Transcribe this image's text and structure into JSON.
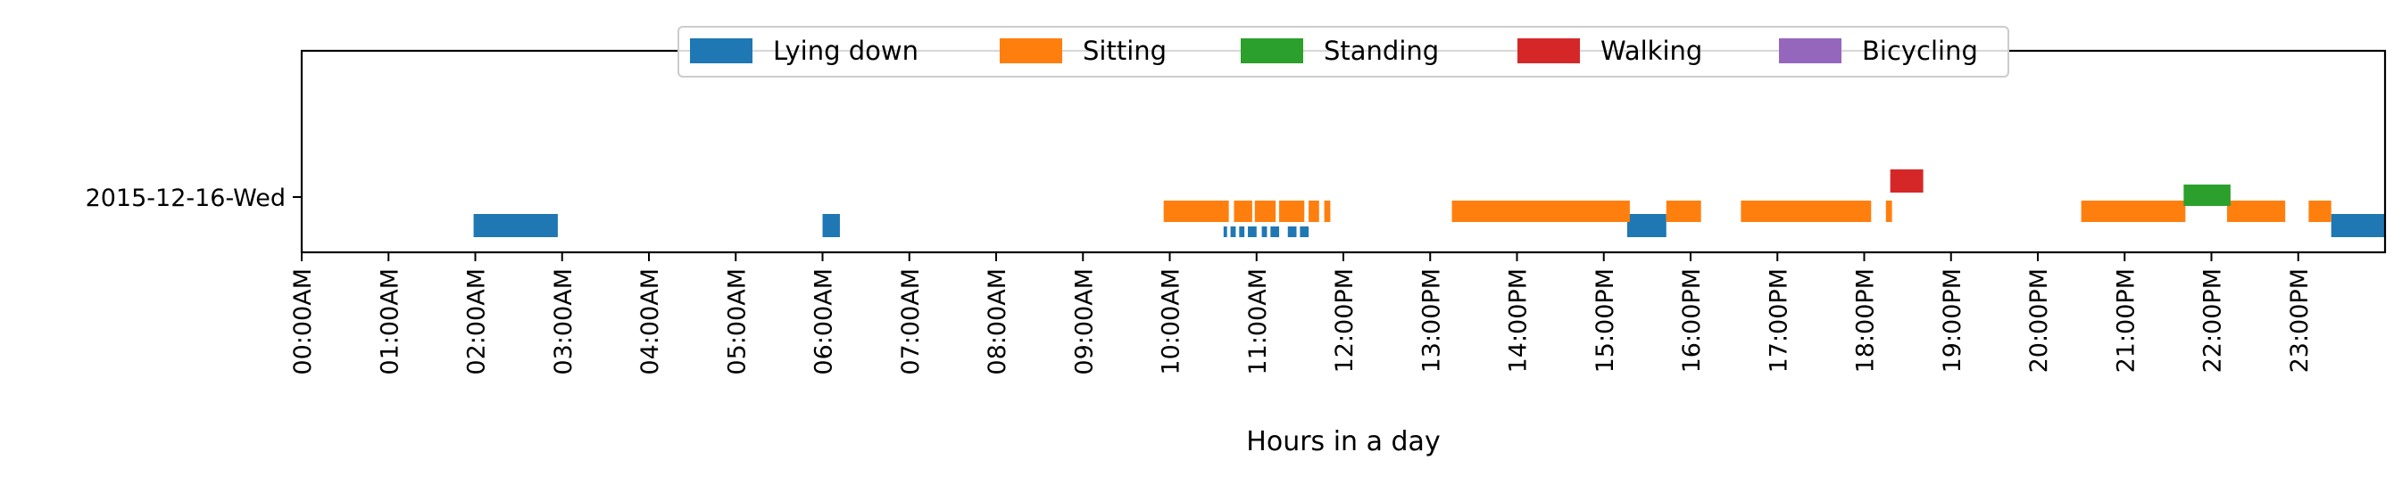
{
  "chart_data": {
    "type": "timeline",
    "xlabel": "Hours in a day",
    "ylabel": "",
    "y_categories": [
      "2015-12-16-Wed"
    ],
    "xlim": [
      0,
      24
    ],
    "x_ticks": [
      {
        "value": 0,
        "label": "00:00AM"
      },
      {
        "value": 1,
        "label": "01:00AM"
      },
      {
        "value": 2,
        "label": "02:00AM"
      },
      {
        "value": 3,
        "label": "03:00AM"
      },
      {
        "value": 4,
        "label": "04:00AM"
      },
      {
        "value": 5,
        "label": "05:00AM"
      },
      {
        "value": 6,
        "label": "06:00AM"
      },
      {
        "value": 7,
        "label": "07:00AM"
      },
      {
        "value": 8,
        "label": "08:00AM"
      },
      {
        "value": 9,
        "label": "09:00AM"
      },
      {
        "value": 10,
        "label": "10:00AM"
      },
      {
        "value": 11,
        "label": "11:00AM"
      },
      {
        "value": 12,
        "label": "12:00PM"
      },
      {
        "value": 13,
        "label": "13:00PM"
      },
      {
        "value": 14,
        "label": "14:00PM"
      },
      {
        "value": 15,
        "label": "15:00PM"
      },
      {
        "value": 16,
        "label": "16:00PM"
      },
      {
        "value": 17,
        "label": "17:00PM"
      },
      {
        "value": 18,
        "label": "18:00PM"
      },
      {
        "value": 19,
        "label": "19:00PM"
      },
      {
        "value": 20,
        "label": "20:00PM"
      },
      {
        "value": 21,
        "label": "21:00PM"
      },
      {
        "value": 22,
        "label": "22:00PM"
      },
      {
        "value": 23,
        "label": "23:00PM"
      }
    ],
    "legend": {
      "location": "upper center"
    },
    "series": [
      {
        "name": "Lying down",
        "color": "#1f77b4",
        "segments": [
          {
            "start": 1.98,
            "end": 2.95,
            "level": "low"
          },
          {
            "start": 6.0,
            "end": 6.2,
            "level": "low"
          },
          {
            "start": 10.62,
            "end": 10.66,
            "level": "lowest"
          },
          {
            "start": 10.7,
            "end": 10.76,
            "level": "lowest"
          },
          {
            "start": 10.8,
            "end": 10.86,
            "level": "lowest"
          },
          {
            "start": 10.9,
            "end": 11.0,
            "level": "lowest"
          },
          {
            "start": 11.06,
            "end": 11.12,
            "level": "lowest"
          },
          {
            "start": 11.16,
            "end": 11.26,
            "level": "lowest"
          },
          {
            "start": 11.36,
            "end": 11.46,
            "level": "lowest"
          },
          {
            "start": 11.5,
            "end": 11.6,
            "level": "lowest"
          },
          {
            "start": 15.27,
            "end": 15.72,
            "level": "low"
          },
          {
            "start": 23.38,
            "end": 24.0,
            "level": "low"
          }
        ]
      },
      {
        "name": "Sitting",
        "color": "#ff7f0e",
        "segments": [
          {
            "start": 9.93,
            "end": 10.68,
            "level": "mid"
          },
          {
            "start": 10.74,
            "end": 10.95,
            "level": "mid"
          },
          {
            "start": 10.98,
            "end": 11.22,
            "level": "mid"
          },
          {
            "start": 11.26,
            "end": 11.55,
            "level": "mid"
          },
          {
            "start": 11.6,
            "end": 11.72,
            "level": "mid"
          },
          {
            "start": 11.78,
            "end": 11.85,
            "level": "mid"
          },
          {
            "start": 13.25,
            "end": 15.3,
            "level": "mid"
          },
          {
            "start": 15.72,
            "end": 16.12,
            "level": "mid"
          },
          {
            "start": 16.58,
            "end": 18.08,
            "level": "mid"
          },
          {
            "start": 18.25,
            "end": 18.32,
            "level": "mid"
          },
          {
            "start": 20.5,
            "end": 21.7,
            "level": "mid"
          },
          {
            "start": 22.18,
            "end": 22.85,
            "level": "mid"
          },
          {
            "start": 23.12,
            "end": 23.38,
            "level": "mid"
          }
        ]
      },
      {
        "name": "Standing",
        "color": "#2ca02c",
        "segments": [
          {
            "start": 21.68,
            "end": 22.22,
            "level": "high"
          }
        ]
      },
      {
        "name": "Walking",
        "color": "#d62728",
        "segments": [
          {
            "start": 18.3,
            "end": 18.68,
            "level": "top"
          }
        ]
      },
      {
        "name": "Bicycling",
        "color": "#9467bd",
        "segments": []
      }
    ],
    "grid": false
  }
}
